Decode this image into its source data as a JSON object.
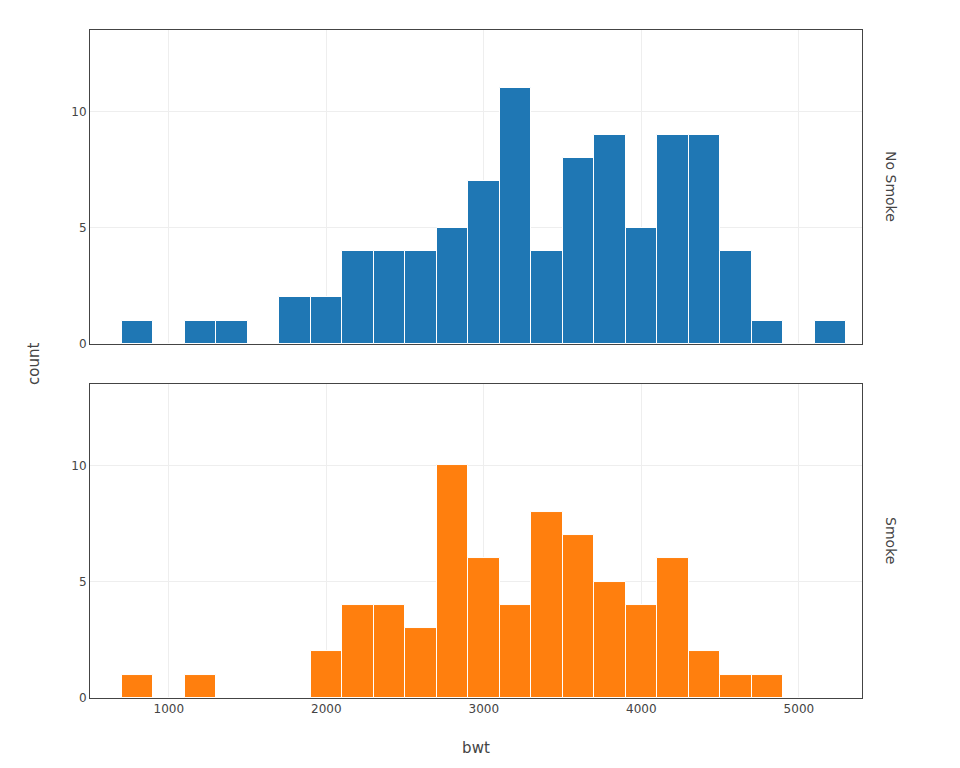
{
  "chart_data": [
    {
      "type": "histogram",
      "title": "No Smoke",
      "bins": [
        700,
        900,
        1100,
        1300,
        1500,
        1700,
        1900,
        2100,
        2300,
        2500,
        2700,
        2900,
        3100,
        3300,
        3500,
        3700,
        3900,
        4100,
        4300,
        4500,
        4700,
        4900,
        5100,
        5300
      ],
      "values": [
        1,
        0,
        1,
        1,
        0,
        2,
        2,
        4,
        4,
        4,
        5,
        7,
        11,
        4,
        8,
        9,
        5,
        9,
        9,
        4,
        1,
        0,
        1
      ],
      "xlim": [
        500,
        5400
      ],
      "ylim": [
        0,
        13.5
      ],
      "xticks": [
        1000,
        2000,
        3000,
        4000,
        5000
      ],
      "yticks": [
        0,
        5,
        10
      ],
      "grid": true,
      "tick_labels": "y"
    },
    {
      "type": "histogram",
      "title": "Smoke",
      "xlabel": "bwt",
      "ylabel": "count",
      "bins": [
        700,
        900,
        1100,
        1300,
        1500,
        1700,
        1900,
        2100,
        2300,
        2500,
        2700,
        2900,
        3100,
        3300,
        3500,
        3700,
        3900,
        4100,
        4300,
        4500,
        4700,
        4900,
        5100,
        5300
      ],
      "values": [
        1,
        0,
        1,
        0,
        0,
        0,
        2,
        4,
        4,
        3,
        10,
        6,
        4,
        8,
        7,
        5,
        4,
        6,
        2,
        1,
        1,
        0,
        0
      ],
      "xlim": [
        500,
        5400
      ],
      "ylim": [
        0,
        13.5
      ],
      "xticks": [
        1000,
        2000,
        3000,
        4000,
        5000
      ],
      "yticks": [
        0,
        5,
        10
      ],
      "grid": true
    }
  ]
}
